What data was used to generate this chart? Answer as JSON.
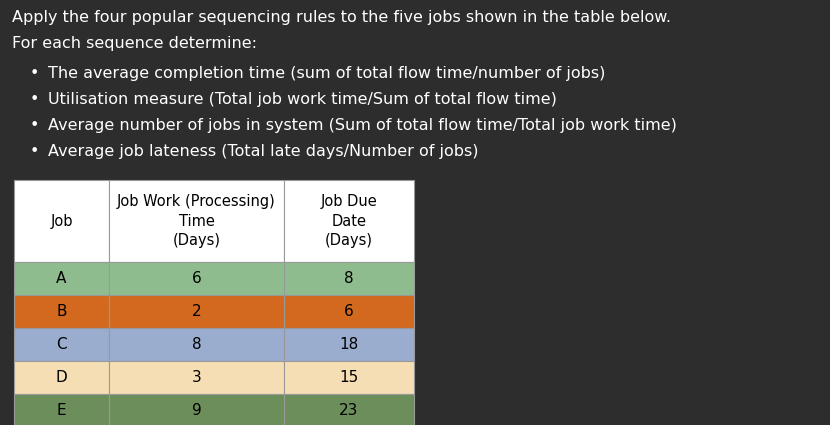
{
  "background_color": "#2d2d2d",
  "text_color": "#ffffff",
  "title_lines": [
    "Apply the four popular sequencing rules to the five jobs shown in the table below.",
    "For each sequence determine:"
  ],
  "bullets": [
    "The average completion time (sum of total flow time/number of jobs)",
    "Utilisation measure (Total job work time/Sum of total flow time)",
    "Average number of jobs in system (Sum of total flow time/Total job work time)",
    "Average job lateness (Total late days/Number of jobs)"
  ],
  "table": {
    "rows": [
      {
        "job": "A",
        "work_time": "6",
        "due_date": "8",
        "color": "#8fbc8f"
      },
      {
        "job": "B",
        "work_time": "2",
        "due_date": "6",
        "color": "#d2691e"
      },
      {
        "job": "C",
        "work_time": "8",
        "due_date": "18",
        "color": "#9aadcf"
      },
      {
        "job": "D",
        "work_time": "3",
        "due_date": "15",
        "color": "#f5deb3"
      },
      {
        "job": "E",
        "work_time": "9",
        "due_date": "23",
        "color": "#6b8e5a"
      }
    ],
    "header_bg": "#ffffff",
    "header_text_color": "#000000",
    "border_color": "#999999"
  },
  "title_fontsize": 11.5,
  "bullet_fontsize": 11.5,
  "table_header_fontsize": 10.5,
  "table_data_fontsize": 11
}
